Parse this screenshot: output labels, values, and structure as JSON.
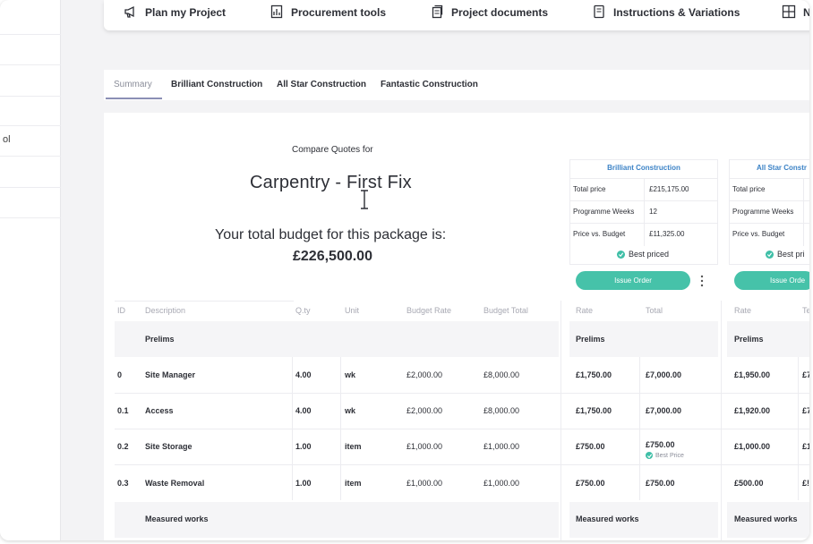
{
  "colors": {
    "accent_teal": "#46c2a9",
    "link_blue": "#3b82c6",
    "tab_underline": "#8b8fb5"
  },
  "sidebar": {
    "fragment_text": "ol"
  },
  "topnav": {
    "items": [
      {
        "label": "Plan my Project",
        "icon": "megaphone-icon"
      },
      {
        "label": "Procurement tools",
        "icon": "clipboard-chart-icon"
      },
      {
        "label": "Project documents",
        "icon": "documents-icon"
      },
      {
        "label": "Instructions & Variations",
        "icon": "note-icon"
      },
      {
        "label": "N",
        "icon": "grid-icon"
      }
    ]
  },
  "tabs": [
    "Summary",
    "Brilliant Construction",
    "All Star Construction",
    "Fantastic Construction"
  ],
  "summary": {
    "compare_label": "Compare Quotes for",
    "package_name": "Carpentry - First Fix",
    "budget_label": "Your total budget for this package is:",
    "budget_value": "£226,500.00"
  },
  "quotes": [
    {
      "company": "Brilliant Construction",
      "rows": [
        {
          "key": "Total price",
          "value": "£215,175.00"
        },
        {
          "key": "Programme Weeks",
          "value": "12"
        },
        {
          "key": "Price vs. Budget",
          "value": "£11,325.00"
        }
      ],
      "badge": "Best priced",
      "issue_label": "Issue Order"
    },
    {
      "company": "All Star Constr",
      "rows": [
        {
          "key": "Total price",
          "value": ""
        },
        {
          "key": "Programme Weeks",
          "value": ""
        },
        {
          "key": "Price vs. Budget",
          "value": ""
        }
      ],
      "badge": "Best pri",
      "issue_label": "Issue Orde"
    }
  ],
  "table": {
    "headers": [
      "ID",
      "Description",
      "Q.ty",
      "Unit",
      "Budget Rate",
      "Budget Total"
    ],
    "quote_headers": [
      "Rate",
      "Total",
      "Rate",
      "Te"
    ],
    "sections": [
      {
        "title": "Prelims",
        "rows": [
          {
            "id": "0",
            "desc": "Site Manager",
            "qty": "4.00",
            "unit": "wk",
            "rate": "£2,000.00",
            "total": "£8,000.00",
            "q1_rate": "£1,750.00",
            "q1_total": "£7,000.00",
            "q2_rate": "£1,950.00",
            "q2_total": "£7"
          },
          {
            "id": "0.1",
            "desc": "Access",
            "qty": "4.00",
            "unit": "wk",
            "rate": "£2,000.00",
            "total": "£8,000.00",
            "q1_rate": "£1,750.00",
            "q1_total": "£7,000.00",
            "q2_rate": "£1,920.00",
            "q2_total": "£7"
          },
          {
            "id": "0.2",
            "desc": "Site Storage",
            "qty": "1.00",
            "unit": "item",
            "rate": "£1,000.00",
            "total": "£1,000.00",
            "q1_rate": "£750.00",
            "q1_total": "£750.00",
            "q1_note": "Best Price",
            "q2_rate": "£1,000.00",
            "q2_total": "£1"
          },
          {
            "id": "0.3",
            "desc": "Waste Removal",
            "qty": "1.00",
            "unit": "item",
            "rate": "£1,000.00",
            "total": "£1,000.00",
            "q1_rate": "£750.00",
            "q1_total": "£750.00",
            "q2_rate": "£500.00",
            "q2_total": "£!"
          }
        ]
      },
      {
        "title": "Measured works",
        "rows": []
      }
    ]
  }
}
